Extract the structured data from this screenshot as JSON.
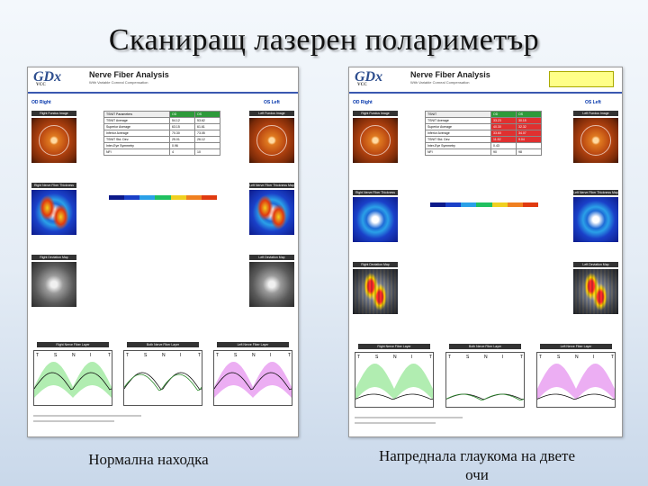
{
  "slide": {
    "title": "Сканиращ лазерен полариметър",
    "caption_left": "Нормална находка",
    "caption_right": "Напреднала глаукома на двете очи"
  },
  "colors": {
    "graph_band_green": "#9ee89e",
    "graph_band_magenta": "#e79af0",
    "deviation_red": "#ff2a2a",
    "header_blue": "#3a58b0"
  },
  "report_left": {
    "logo": "GDx",
    "logo_sub": "VCC",
    "title": "Nerve Fiber Analysis",
    "subtitle": "With Variable Corneal Compensation",
    "od_tag": "OD Right",
    "os_tag": "OS Left",
    "table": {
      "headers": [
        "TSNIT Parameters",
        "OD",
        "OS"
      ],
      "rows": [
        [
          "TSNIT Average",
          "54.12",
          "53.62"
        ],
        [
          "Superior Average",
          "63.15",
          "61.61"
        ],
        [
          "Inferior Average",
          "70.30",
          "73.05"
        ],
        [
          "TSNIT Std. Dev.",
          "25.01",
          "26.12"
        ],
        [
          "Inter-Eye Symmetry",
          "0.96",
          ""
        ],
        [
          "NFI",
          "4",
          "10"
        ]
      ]
    },
    "labels": {
      "fundus_od": "Right Fundus Image",
      "fundus_os": "Left Fundus Image",
      "thick_od": "Right Nerve Fiber Thickness Map",
      "thick_os": "Left Nerve Fiber Thickness Map",
      "dev_od": "Right Deviation Map",
      "dev_os": "Left Deviation Map",
      "graph_od": "Right Nerve Fiber Layer",
      "graph_both": "Both Nerve Fiber Layer",
      "graph_os": "Left Nerve Fiber Layer"
    }
  },
  "report_right": {
    "logo": "GDx",
    "logo_sub": "VCC",
    "title": "Nerve Fiber Analysis",
    "subtitle": "With Variable Corneal Compensation",
    "od_tag": "OD Right",
    "os_tag": "OS Left",
    "table": {
      "headers": [
        "TSNIT",
        "OD",
        "OS"
      ],
      "rows": [
        [
          "TSNIT Average",
          "33.23",
          "30.15"
        ],
        [
          "Superior Average",
          "40.30",
          "32.32"
        ],
        [
          "Inferior Average",
          "33.60",
          "34.07"
        ],
        [
          "TSNIT Std. Dev.",
          "11.52",
          "9.04"
        ],
        [
          "Inter-Eye Symmetry",
          "0.43",
          ""
        ],
        [
          "NFI",
          "90",
          "98"
        ]
      ]
    },
    "labels": {
      "fundus_od": "Right Fundus Image",
      "fundus_os": "Left Fundus Image",
      "thick_od": "Right Nerve Fiber Thickness Map",
      "thick_os": "Left Nerve Fiber Thickness Map",
      "dev_od": "Right Deviation Map",
      "dev_os": "Left Deviation Map",
      "graph_od": "Right Nerve Fiber Layer",
      "graph_both": "Both Nerve Fiber Layer",
      "graph_os": "Left Nerve Fiber Layer"
    }
  },
  "tsnit_axis": [
    "T",
    "S",
    "N",
    "I",
    "T"
  ]
}
